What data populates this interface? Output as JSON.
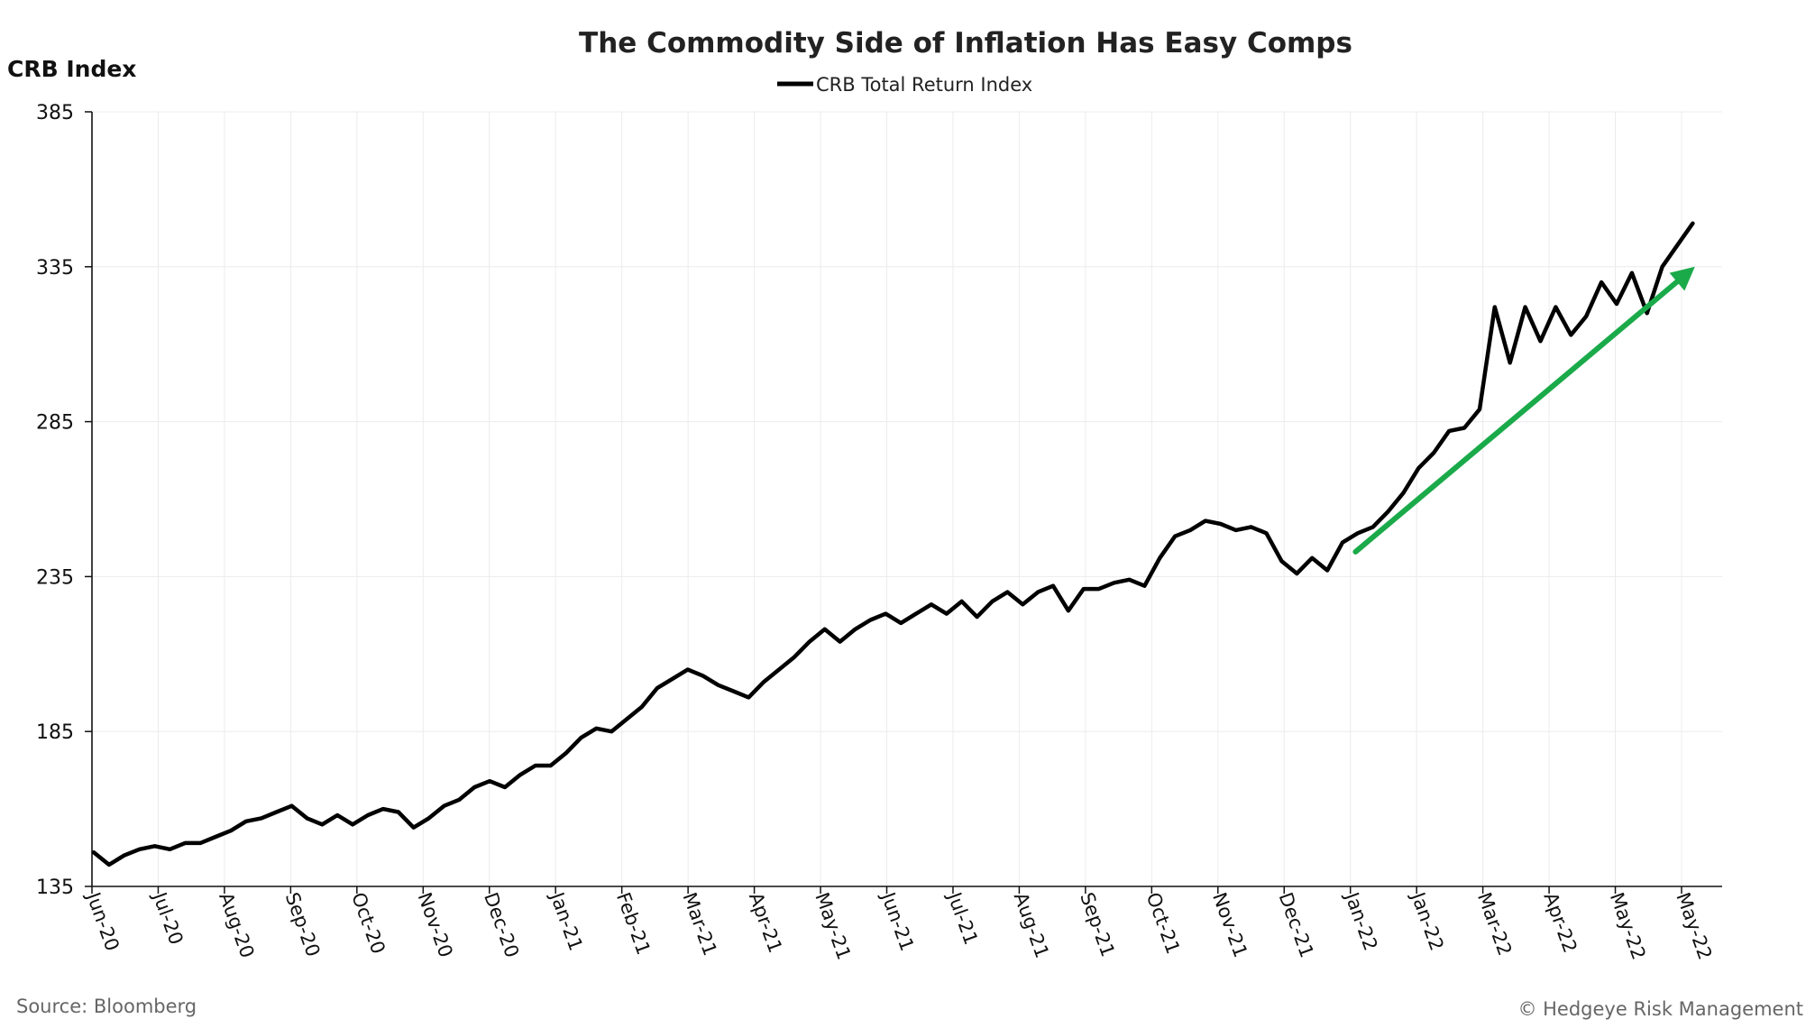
{
  "chart_data": {
    "type": "line",
    "title": "The Commodity Side of Inflation Has Easy Comps",
    "ylabel": "CRB Index",
    "xlabel": "",
    "ylim": [
      135,
      385
    ],
    "yticks": [
      135,
      185,
      235,
      285,
      335,
      385
    ],
    "grid": true,
    "legend_position": "top-center",
    "x_tick_labels": [
      "Jun-20",
      "Jul-20",
      "Aug-20",
      "Sep-20",
      "Oct-20",
      "Nov-20",
      "Dec-20",
      "Jan-21",
      "Feb-21",
      "Mar-21",
      "Apr-21",
      "May-21",
      "Jun-21",
      "Jul-21",
      "Aug-21",
      "Sep-21",
      "Oct-21",
      "Nov-21",
      "Dec-21",
      "Jan-22",
      "Jan-22",
      "Mar-22",
      "Apr-22",
      "May-22",
      "May-22"
    ],
    "series": [
      {
        "name": "CRB Total Return Index",
        "color": "#000000",
        "x": [
          "2020-06-01",
          "2020-06-08",
          "2020-06-15",
          "2020-06-22",
          "2020-06-29",
          "2020-07-06",
          "2020-07-13",
          "2020-07-20",
          "2020-07-27",
          "2020-08-03",
          "2020-08-10",
          "2020-08-17",
          "2020-08-24",
          "2020-08-31",
          "2020-09-07",
          "2020-09-14",
          "2020-09-21",
          "2020-09-28",
          "2020-10-05",
          "2020-10-12",
          "2020-10-19",
          "2020-10-26",
          "2020-11-02",
          "2020-11-09",
          "2020-11-16",
          "2020-11-23",
          "2020-11-30",
          "2020-12-07",
          "2020-12-14",
          "2020-12-21",
          "2020-12-28",
          "2021-01-04",
          "2021-01-11",
          "2021-01-18",
          "2021-01-25",
          "2021-02-01",
          "2021-02-08",
          "2021-02-15",
          "2021-02-22",
          "2021-03-01",
          "2021-03-08",
          "2021-03-15",
          "2021-03-22",
          "2021-03-29",
          "2021-04-05",
          "2021-04-12",
          "2021-04-19",
          "2021-04-26",
          "2021-05-03",
          "2021-05-10",
          "2021-05-17",
          "2021-05-24",
          "2021-05-31",
          "2021-06-07",
          "2021-06-14",
          "2021-06-21",
          "2021-06-28",
          "2021-07-05",
          "2021-07-12",
          "2021-07-19",
          "2021-07-26",
          "2021-08-02",
          "2021-08-09",
          "2021-08-16",
          "2021-08-23",
          "2021-08-30",
          "2021-09-06",
          "2021-09-13",
          "2021-09-20",
          "2021-09-27",
          "2021-10-04",
          "2021-10-11",
          "2021-10-18",
          "2021-10-25",
          "2021-11-01",
          "2021-11-08",
          "2021-11-15",
          "2021-11-22",
          "2021-11-29",
          "2021-12-06",
          "2021-12-13",
          "2021-12-20",
          "2021-12-27",
          "2022-01-03",
          "2022-01-10",
          "2022-01-17",
          "2022-01-24",
          "2022-01-31",
          "2022-02-07",
          "2022-02-14",
          "2022-02-21",
          "2022-02-28",
          "2022-03-07",
          "2022-03-14",
          "2022-03-21",
          "2022-03-28",
          "2022-04-04",
          "2022-04-11",
          "2022-04-18",
          "2022-04-25",
          "2022-05-02",
          "2022-05-09",
          "2022-05-16",
          "2022-05-23",
          "2022-05-30",
          "2022-06-06"
        ],
        "values": [
          146,
          142,
          145,
          147,
          148,
          147,
          149,
          149,
          151,
          153,
          156,
          157,
          159,
          161,
          157,
          155,
          158,
          155,
          158,
          160,
          159,
          154,
          157,
          161,
          163,
          167,
          169,
          167,
          171,
          174,
          174,
          178,
          183,
          186,
          185,
          189,
          193,
          199,
          202,
          205,
          203,
          200,
          198,
          196,
          201,
          205,
          209,
          214,
          218,
          214,
          218,
          221,
          223,
          220,
          223,
          226,
          223,
          227,
          222,
          227,
          230,
          226,
          230,
          232,
          224,
          231,
          231,
          233,
          234,
          232,
          241,
          248,
          250,
          253,
          252,
          250,
          251,
          249,
          240,
          236,
          241,
          237,
          246,
          249,
          251,
          256,
          262,
          270,
          275,
          282,
          283,
          289,
          322,
          304,
          322,
          311,
          322,
          313,
          319,
          330,
          323,
          333,
          320,
          335,
          342,
          349
        ]
      }
    ],
    "annotations": [
      {
        "type": "arrow",
        "color": "#1aaa4a",
        "from": {
          "x": "2022-01-02",
          "y": 243
        },
        "to": {
          "x": "2022-06-07",
          "y": 335
        }
      }
    ],
    "source": "Source: Bloomberg",
    "copyright": "© Hedgeye Risk Management"
  }
}
